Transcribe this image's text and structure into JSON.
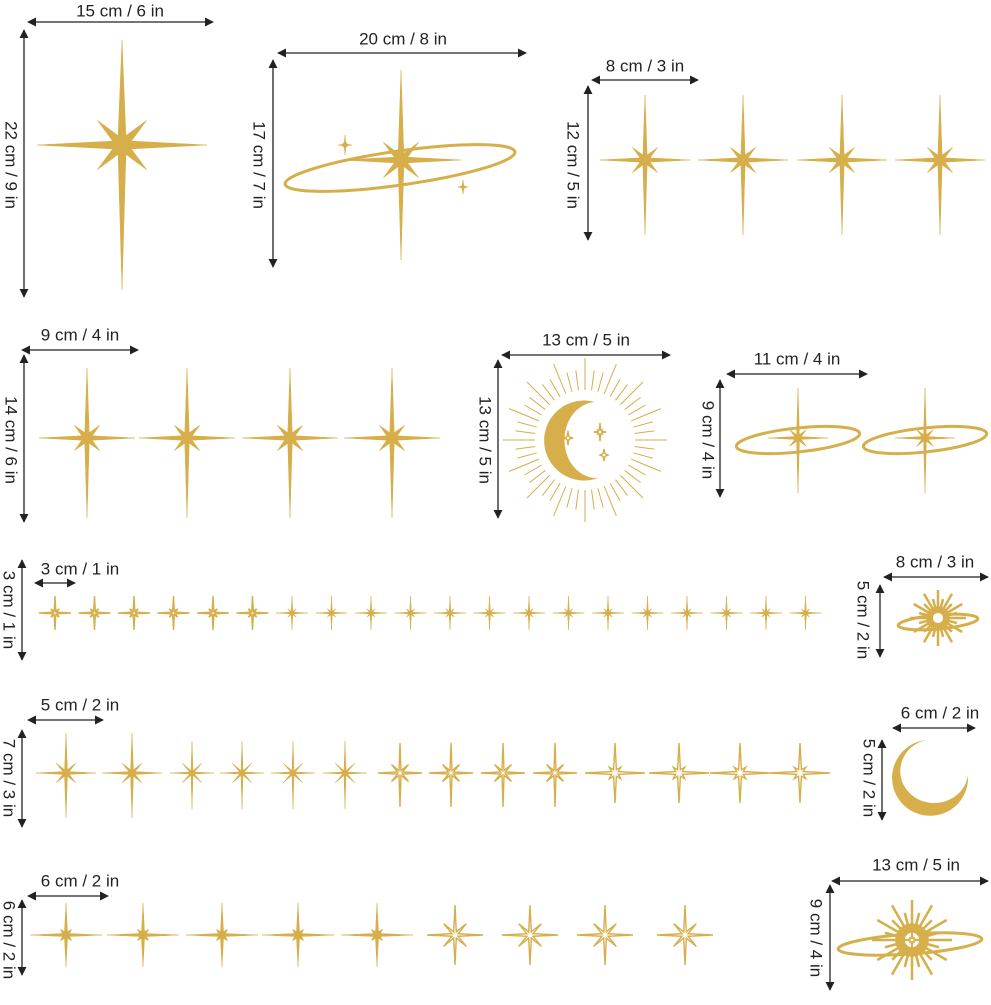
{
  "labels": [
    "15 cm / 6 in",
    "22 cm / 9 in",
    "20 cm / 8 in",
    "17 cm / 7 in",
    "8 cm / 3 in",
    "12 cm / 5 in",
    "9 cm / 4 in",
    "14 cm / 6 in",
    "13 cm / 5 in",
    "13 cm / 5 in",
    "11 cm / 4 in",
    "9 cm / 4 in",
    "3 cm / 1 in",
    "3 cm / 1 in",
    "8 cm / 3 in",
    "5 cm / 2 in",
    "5 cm / 2 in",
    "7 cm / 3 in",
    "6 cm / 2 in",
    "5 cm / 2 in",
    "6 cm / 2 in",
    "6 cm / 2 in",
    "13 cm / 5 in",
    "9 cm / 4 in"
  ]
}
